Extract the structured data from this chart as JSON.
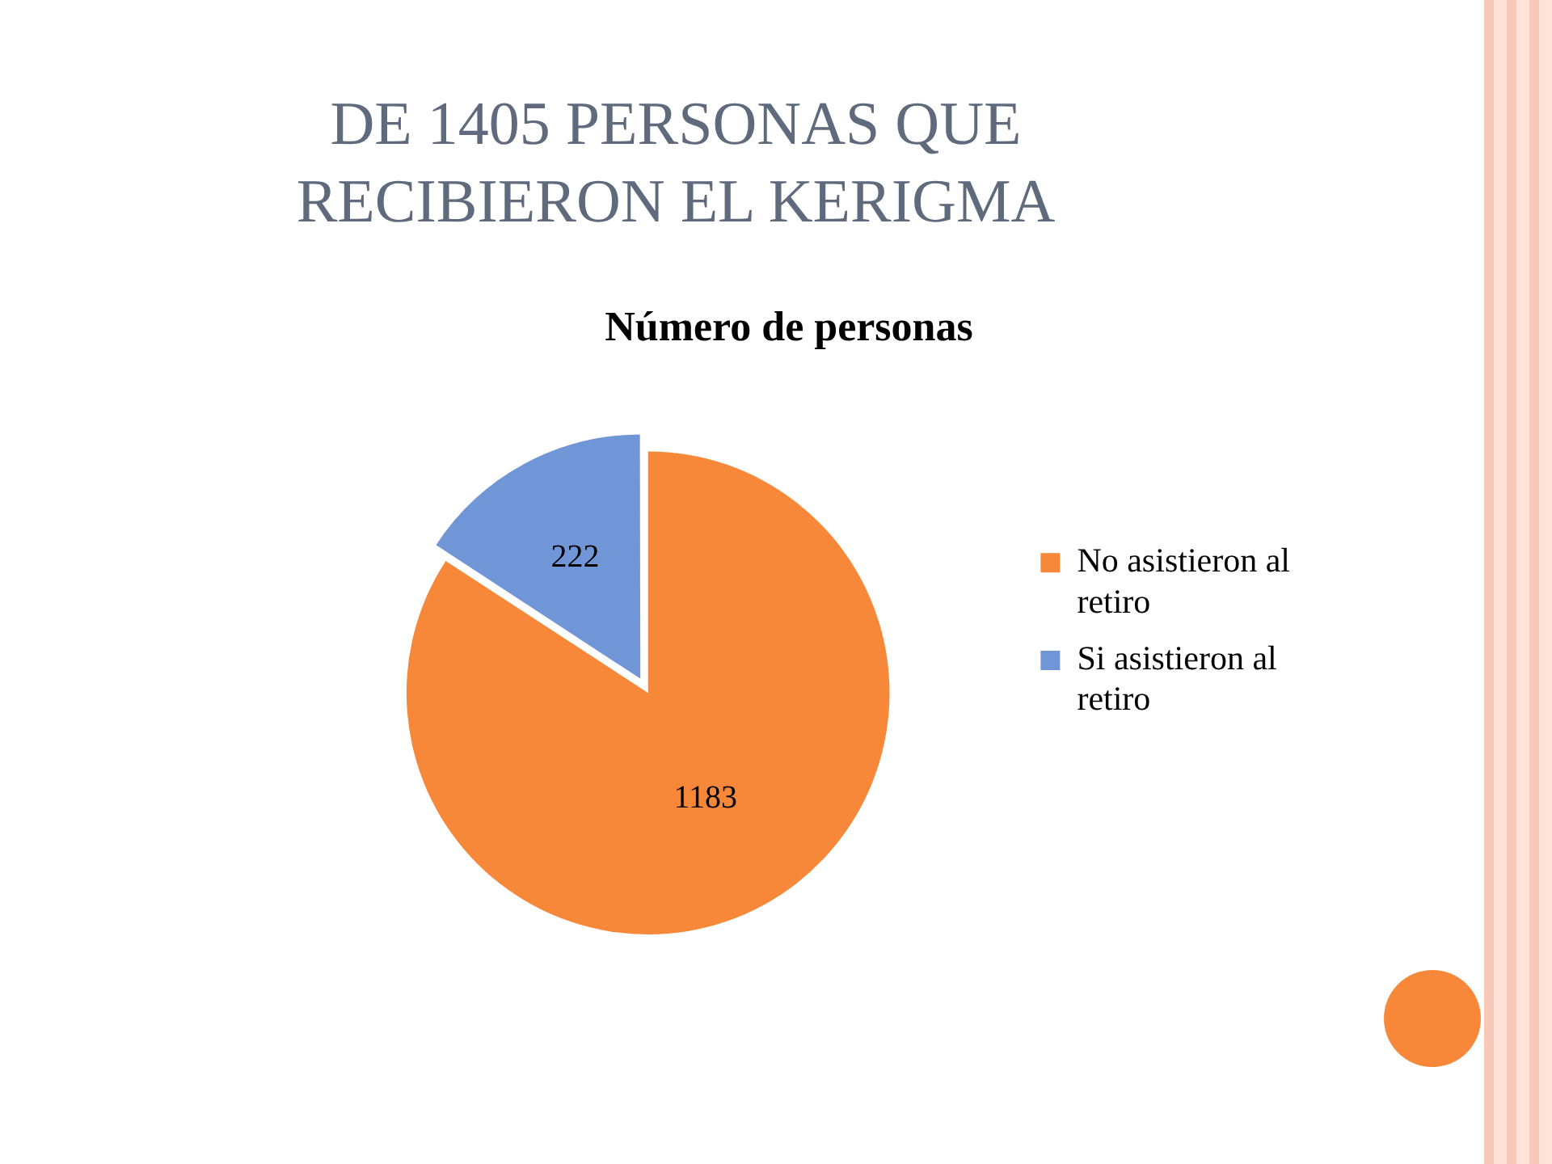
{
  "chart_data": {
    "type": "pie",
    "title": "DE 1405 PERSONAS QUE RECIBIERON EL KERIGMA",
    "subtitle": "Número de personas",
    "categories": [
      "No asistieron al retiro",
      "Si asistieron al retiro"
    ],
    "values": [
      1183,
      222
    ],
    "colors": [
      "#f7883a",
      "#7196d8"
    ],
    "data_labels": true,
    "legend": "right"
  }
}
